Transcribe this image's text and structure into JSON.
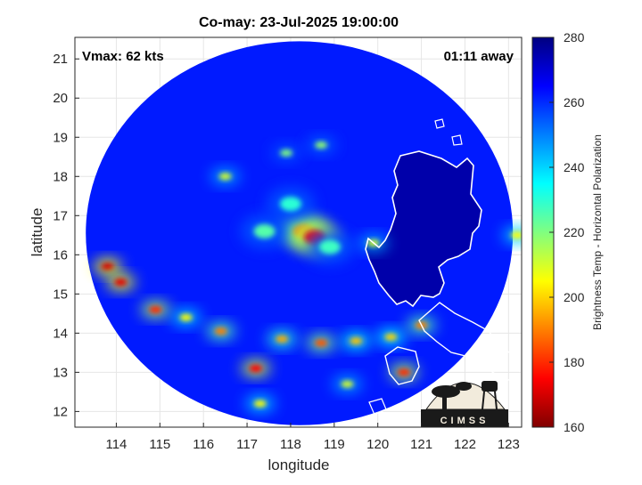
{
  "chart_data": {
    "type": "heatmap",
    "title": "Co-may: 23-Jul-2025 19:00:00",
    "xlabel": "longitude",
    "ylabel": "latitude",
    "xlim": [
      113.05,
      123.3
    ],
    "ylim": [
      11.6,
      21.55
    ],
    "xticks": [
      114,
      115,
      116,
      117,
      118,
      119,
      120,
      121,
      122,
      123
    ],
    "yticks": [
      12,
      13,
      14,
      15,
      16,
      17,
      18,
      19,
      20,
      21
    ],
    "grid": true,
    "annotations": {
      "vmax": "Vmax: 62 kts",
      "time_away": "01:11 away"
    },
    "colorbar": {
      "label": "Brightness Temp - Horizontal Polarization",
      "range": [
        160,
        280
      ],
      "ticks": [
        160,
        180,
        200,
        220,
        240,
        260,
        280
      ],
      "colormap": "jet"
    },
    "swath": {
      "center": [
        118.2,
        16.55
      ],
      "radius_deg": 4.9
    },
    "background_tb": 262,
    "features": [
      {
        "name": "eye",
        "lon": 118.3,
        "lat": 16.6,
        "tb": 188
      },
      {
        "name": "eyewall-east",
        "lon": 118.55,
        "lat": 16.45,
        "tb": 176
      },
      {
        "name": "inner-band-1",
        "lon": 117.4,
        "lat": 16.6,
        "tb": 225
      },
      {
        "name": "inner-band-2",
        "lon": 118.0,
        "lat": 17.3,
        "tb": 230
      },
      {
        "name": "inner-band-3",
        "lon": 118.9,
        "lat": 16.2,
        "tb": 228
      },
      {
        "name": "band-north-1",
        "lon": 116.5,
        "lat": 18.0,
        "tb": 210
      },
      {
        "name": "band-north-2",
        "lon": 117.9,
        "lat": 18.6,
        "tb": 220
      },
      {
        "name": "band-north-3",
        "lon": 118.7,
        "lat": 18.8,
        "tb": 218
      },
      {
        "name": "band-west-1",
        "lon": 113.8,
        "lat": 15.7,
        "tb": 170
      },
      {
        "name": "band-west-2",
        "lon": 114.1,
        "lat": 15.3,
        "tb": 172
      },
      {
        "name": "band-west-3",
        "lon": 114.9,
        "lat": 14.6,
        "tb": 180
      },
      {
        "name": "band-south-1",
        "lon": 115.6,
        "lat": 14.4,
        "tb": 205
      },
      {
        "name": "band-south-2",
        "lon": 116.4,
        "lat": 14.05,
        "tb": 190
      },
      {
        "name": "band-south-3",
        "lon": 117.2,
        "lat": 13.1,
        "tb": 175
      },
      {
        "name": "band-south-4",
        "lon": 117.8,
        "lat": 13.85,
        "tb": 195
      },
      {
        "name": "band-south-5",
        "lon": 118.7,
        "lat": 13.75,
        "tb": 185
      },
      {
        "name": "band-south-6",
        "lon": 119.5,
        "lat": 13.8,
        "tb": 198
      },
      {
        "name": "band-south-7",
        "lon": 120.3,
        "lat": 13.9,
        "tb": 200
      },
      {
        "name": "band-south-8",
        "lon": 121.0,
        "lat": 14.2,
        "tb": 190
      },
      {
        "name": "band-south-9",
        "lon": 120.6,
        "lat": 13.0,
        "tb": 180
      },
      {
        "name": "band-south-10",
        "lon": 119.3,
        "lat": 12.7,
        "tb": 210
      },
      {
        "name": "band-south-11",
        "lon": 117.3,
        "lat": 12.2,
        "tb": 205
      },
      {
        "name": "luzon-coast",
        "lon": 119.9,
        "lat": 16.3,
        "tb": 210
      },
      {
        "name": "east-edge",
        "lon": 123.2,
        "lat": 16.5,
        "tb": 205
      }
    ],
    "cold_land": {
      "tb": 275
    }
  },
  "logo": {
    "text": "CIMSS"
  }
}
